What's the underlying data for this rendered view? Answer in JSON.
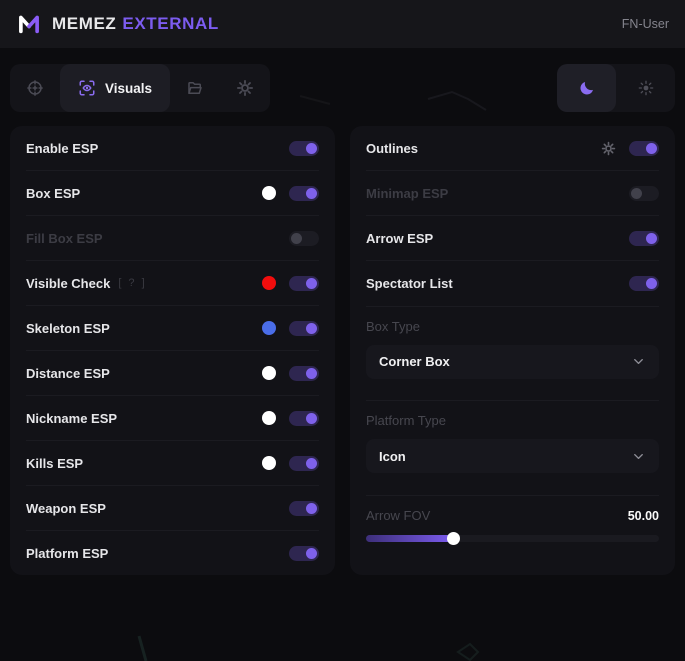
{
  "header": {
    "brand": {
      "name": "MEMEZ",
      "suffix": "EXTERNAL"
    },
    "user": "FN-User"
  },
  "toolbar": {
    "tabs": [
      {
        "id": "aimbot",
        "icon": "crosshair-icon",
        "label": "",
        "active": false
      },
      {
        "id": "visuals",
        "icon": "eye-scan-icon",
        "label": "Visuals",
        "active": true
      },
      {
        "id": "configs",
        "icon": "folder-icon",
        "label": "",
        "active": false
      },
      {
        "id": "settings",
        "icon": "gear-icon",
        "label": "",
        "active": false
      }
    ],
    "theme": {
      "selected": "moon",
      "options": [
        "moon-icon",
        "sun-icon"
      ]
    }
  },
  "panels": {
    "left": {
      "rows": [
        {
          "label": "Enable ESP",
          "toggle": "on",
          "enabled": true
        },
        {
          "label": "Box ESP",
          "color": "#ffffff",
          "toggle": "on",
          "enabled": true
        },
        {
          "label": "Fill Box ESP",
          "toggle": "off",
          "enabled": false
        },
        {
          "label": "Visible Check",
          "hint": "[ ? ]",
          "color": "#f20d0d",
          "toggle": "on",
          "enabled": true
        },
        {
          "label": "Skeleton ESP",
          "color": "#4a6de8",
          "toggle": "on",
          "enabled": true
        },
        {
          "label": "Distance ESP",
          "color": "#ffffff",
          "toggle": "on",
          "enabled": true
        },
        {
          "label": "Nickname ESP",
          "color": "#ffffff",
          "toggle": "on",
          "enabled": true
        },
        {
          "label": "Kills ESP",
          "color": "#ffffff",
          "toggle": "on",
          "enabled": true
        },
        {
          "label": "Weapon ESP",
          "toggle": "on",
          "enabled": true
        },
        {
          "label": "Platform ESP",
          "toggle": "on",
          "enabled": true
        }
      ]
    },
    "right": {
      "toggles": [
        {
          "label": "Outlines",
          "gear": true,
          "toggle": "on",
          "enabled": true
        },
        {
          "label": "Minimap ESP",
          "gear": false,
          "toggle": "off",
          "enabled": false
        },
        {
          "label": "Arrow ESP",
          "gear": false,
          "toggle": "on",
          "enabled": true
        },
        {
          "label": "Spectator List",
          "gear": false,
          "toggle": "on",
          "enabled": true
        }
      ],
      "selects": [
        {
          "label": "Box Type",
          "value": "Corner Box"
        },
        {
          "label": "Platform Type",
          "value": "Icon"
        }
      ],
      "slider": {
        "label": "Arrow FOV",
        "value": "50.00",
        "percent": 30
      }
    }
  },
  "colors": {
    "accent": "#7c5cf0",
    "toggle_track_on": "#2e2650",
    "toggle_knob_on": "#7e61ea",
    "swatch_red": "#f20d0d",
    "swatch_blue": "#4a6de8",
    "swatch_white": "#ffffff"
  }
}
